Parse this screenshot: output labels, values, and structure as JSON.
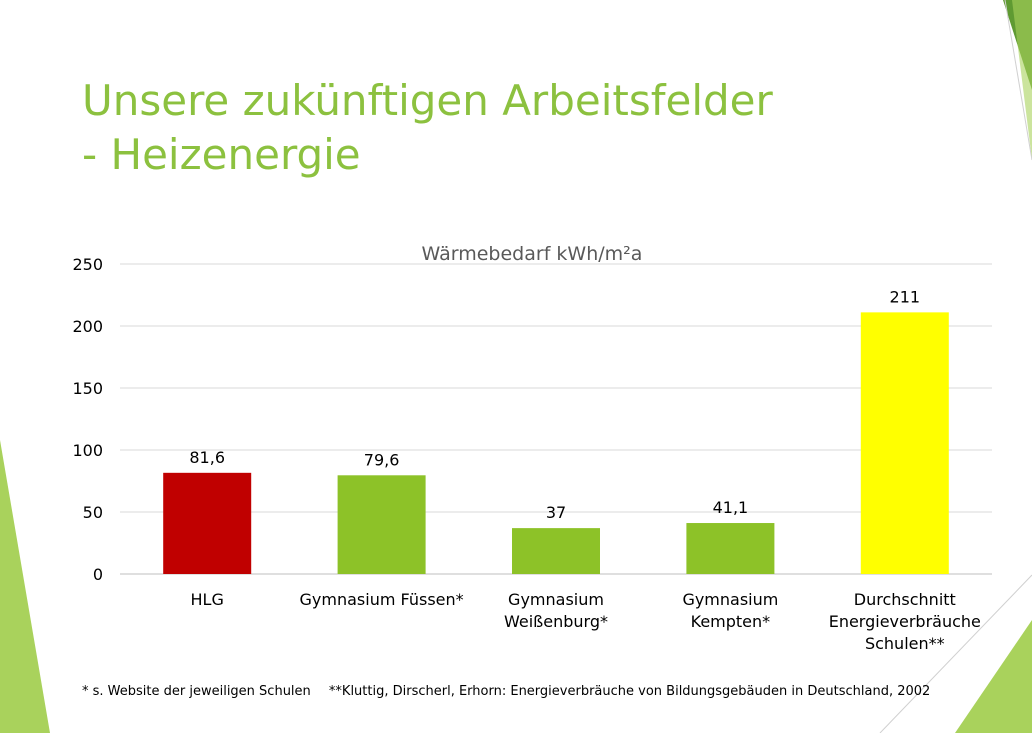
{
  "slide": {
    "title_line1": "Unsere zukünftigen Arbeitsfelder",
    "title_line2": "- Heizenergie",
    "footnote_1": "* s. Website der jeweiligen Schulen",
    "footnote_2": "**Kluttig, Dirscherl, Erhorn: Energieverbräuche von Bildungsgebäuden in Deutschland, 2002"
  },
  "colors": {
    "accent_green": "#8cc13f",
    "bar_red": "#c00000",
    "bar_green": "#8dc228",
    "bar_yellow": "#ffff00",
    "deco_light": "#a9d25c",
    "deco_dark": "#5f9a32"
  },
  "chart_data": {
    "type": "bar",
    "title": "Wärmebedarf kWh/m²a",
    "categories": [
      [
        "HLG"
      ],
      [
        "Gymnasium Füssen*"
      ],
      [
        "Gymnasium",
        "Weißenburg*"
      ],
      [
        "Gymnasium",
        "Kempten*"
      ],
      [
        "Durchschnitt",
        "Energieverbräuche",
        "Schulen**"
      ]
    ],
    "values": [
      81.6,
      79.6,
      37,
      41.1,
      211
    ],
    "data_labels": [
      "81,6",
      "79,6",
      "37",
      "41,1",
      "211"
    ],
    "bar_colors": [
      "#c00000",
      "#8dc228",
      "#8dc228",
      "#8dc228",
      "#ffff00"
    ],
    "ylim": [
      0,
      250
    ],
    "yticks": [
      0,
      50,
      100,
      150,
      200,
      250
    ],
    "grid": true,
    "legend": "none",
    "xlabel": "",
    "ylabel": ""
  }
}
